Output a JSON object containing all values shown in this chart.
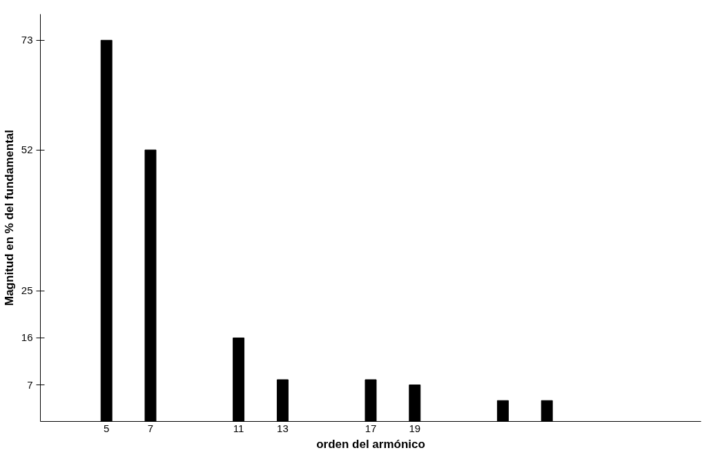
{
  "chart_data": {
    "type": "bar",
    "xlabel": "orden del armónico",
    "ylabel": "Magnitud en % del fundamental",
    "x": [
      5,
      7,
      11,
      13,
      17,
      19,
      23,
      25
    ],
    "values": [
      73,
      52,
      16,
      8,
      8,
      7,
      4,
      4
    ],
    "color": "#000000",
    "xlim": [
      2,
      32
    ],
    "xticks": [
      5,
      7,
      11,
      13,
      17,
      19
    ],
    "ylim": [
      0,
      78
    ],
    "yticks": [
      7,
      16,
      25,
      52,
      73
    ],
    "grid": false
  }
}
